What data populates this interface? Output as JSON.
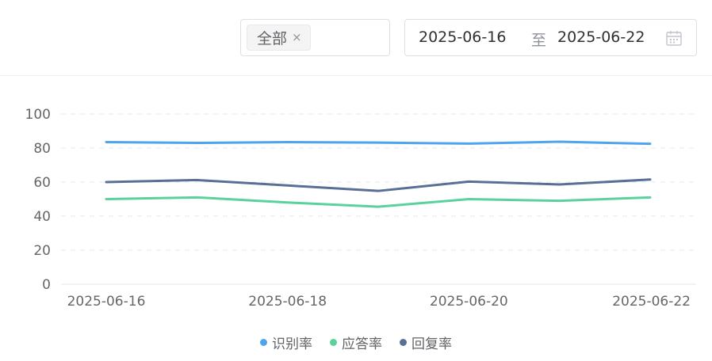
{
  "filter": {
    "tag_label": "全部",
    "tag_close": "×"
  },
  "date_range": {
    "start": "2025-06-16",
    "separator": "至",
    "end": "2025-06-22",
    "icon": "calendar-icon"
  },
  "chart_data": {
    "type": "line",
    "title": "",
    "xlabel": "",
    "ylabel": "",
    "x": [
      "2025-06-16",
      "2025-06-17",
      "2025-06-18",
      "2025-06-19",
      "2025-06-20",
      "2025-06-21",
      "2025-06-22"
    ],
    "x_tick_labels": [
      "2025-06-16",
      "2025-06-18",
      "2025-06-20",
      "2025-06-22"
    ],
    "ylim": [
      0,
      100
    ],
    "y_ticks": [
      0,
      20,
      40,
      60,
      80,
      100
    ],
    "grid": true,
    "legend_position": "bottom-center",
    "series": [
      {
        "name": "识别率",
        "color": "#4ea5ee",
        "values": [
          83.5,
          83,
          83.5,
          83.2,
          82.6,
          83.7,
          82.5
        ]
      },
      {
        "name": "应答率",
        "color": "#5bd19c",
        "values": [
          50,
          51,
          48,
          45.5,
          50,
          49,
          51
        ]
      },
      {
        "name": "回复率",
        "color": "#5a6f96",
        "values": [
          60,
          61.2,
          58,
          54.8,
          60.3,
          58.6,
          61.5
        ]
      }
    ]
  }
}
